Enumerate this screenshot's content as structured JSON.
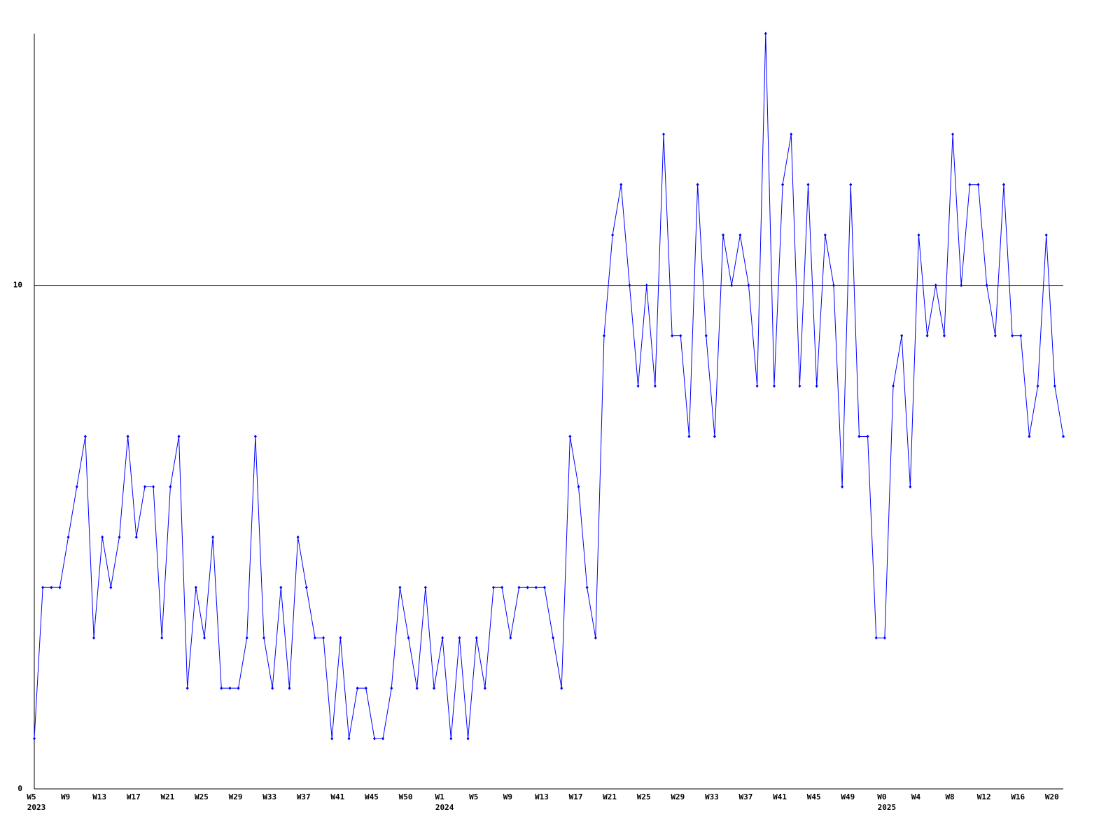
{
  "chart_data": {
    "type": "line",
    "categories": [
      "W5",
      null,
      null,
      null,
      "W9",
      null,
      null,
      null,
      "W13",
      null,
      null,
      null,
      "W17",
      null,
      null,
      null,
      "W21",
      null,
      null,
      null,
      "W25",
      null,
      null,
      null,
      "W29",
      null,
      null,
      null,
      "W33",
      null,
      null,
      null,
      "W37",
      null,
      null,
      null,
      "W41",
      null,
      null,
      null,
      "W45",
      null,
      null,
      null,
      "W50",
      null,
      null,
      null,
      "W1",
      null,
      null,
      null,
      "W5",
      null,
      null,
      null,
      "W9",
      null,
      null,
      null,
      "W13",
      null,
      null,
      null,
      "W17",
      null,
      null,
      null,
      "W21",
      null,
      null,
      null,
      "W25",
      null,
      null,
      null,
      "W29",
      null,
      null,
      null,
      "W33",
      null,
      null,
      null,
      "W37",
      null,
      null,
      null,
      "W41",
      null,
      null,
      null,
      "W45",
      null,
      null,
      null,
      "W49",
      null,
      null,
      null,
      "W0",
      null,
      null,
      null,
      "W4",
      null,
      null,
      null,
      "W8",
      null,
      null,
      null,
      "W12",
      null,
      null,
      null,
      "W16",
      null,
      null,
      null,
      "W20",
      null
    ],
    "year_labels": [
      "2023",
      null,
      null,
      null,
      null,
      null,
      null,
      null,
      null,
      null,
      null,
      null,
      null,
      null,
      null,
      null,
      null,
      null,
      null,
      null,
      null,
      null,
      null,
      null,
      null,
      null,
      null,
      null,
      null,
      null,
      null,
      null,
      null,
      null,
      null,
      null,
      null,
      null,
      null,
      null,
      null,
      null,
      null,
      null,
      null,
      null,
      null,
      null,
      "2024",
      null,
      null,
      null,
      null,
      null,
      null,
      null,
      null,
      null,
      null,
      null,
      null,
      null,
      null,
      null,
      null,
      null,
      null,
      null,
      null,
      null,
      null,
      null,
      null,
      null,
      null,
      null,
      null,
      null,
      null,
      null,
      null,
      null,
      null,
      null,
      null,
      null,
      null,
      null,
      null,
      null,
      null,
      null,
      null,
      null,
      null,
      null,
      null,
      null,
      null,
      null,
      "2025",
      null,
      null,
      null,
      null,
      null,
      null,
      null,
      null,
      null,
      null,
      null,
      null,
      null,
      null,
      null,
      null,
      null,
      null,
      null,
      null,
      null
    ],
    "series": [
      {
        "color": "#0000ff",
        "values": [
          1,
          4,
          4,
          4,
          5,
          6,
          7,
          3,
          5,
          4,
          5,
          7,
          5,
          6,
          6,
          3,
          6,
          7,
          2,
          4,
          3,
          5,
          2,
          2,
          2,
          3,
          7,
          3,
          2,
          4,
          2,
          5,
          4,
          3,
          3,
          1,
          3,
          1,
          2,
          2,
          1,
          1,
          2,
          4,
          3,
          2,
          4,
          2,
          3,
          1,
          3,
          1,
          3,
          2,
          4,
          4,
          3,
          4,
          4,
          4,
          4,
          3,
          2,
          7,
          6,
          4,
          3,
          9,
          11,
          12,
          10,
          8,
          10,
          8,
          13,
          9,
          9,
          7,
          12,
          9,
          7,
          11,
          10,
          11,
          10,
          8,
          15,
          8,
          12,
          13,
          8,
          12,
          8,
          11,
          10,
          6,
          12,
          7,
          7,
          3,
          3,
          8,
          9,
          6,
          11,
          9,
          10,
          9,
          13,
          10,
          12,
          12,
          10,
          9,
          12,
          9,
          9,
          7,
          8,
          11,
          8,
          7
        ]
      }
    ],
    "ylim": [
      0,
      15
    ],
    "yticks": [
      0,
      10
    ],
    "grid": true
  }
}
